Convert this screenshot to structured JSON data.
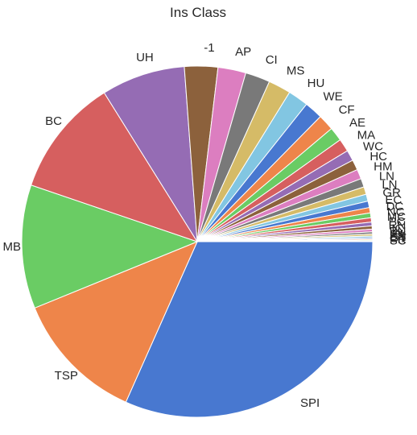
{
  "chart_data": {
    "type": "pie",
    "title": "Ins Class",
    "start_angle_deg": 0,
    "direction": "clockwise",
    "slices": [
      {
        "label": "SPI",
        "value": 32.0,
        "color": "#4878d0"
      },
      {
        "label": "TSP",
        "value": 12.3,
        "color": "#ee854a"
      },
      {
        "label": "MB",
        "value": 11.5,
        "color": "#6acc64"
      },
      {
        "label": "BC",
        "value": 11.0,
        "color": "#d65f5f"
      },
      {
        "label": "UH",
        "value": 7.8,
        "color": "#956cb4"
      },
      {
        "label": "-1",
        "value": 3.1,
        "color": "#8c613c"
      },
      {
        "label": "AP",
        "value": 2.6,
        "color": "#dc7ec0"
      },
      {
        "label": "CI",
        "value": 2.3,
        "color": "#797979"
      },
      {
        "label": "MS",
        "value": 2.1,
        "color": "#d5bb67"
      },
      {
        "label": "HU",
        "value": 1.9,
        "color": "#82c6e2"
      },
      {
        "label": "WE",
        "value": 1.7,
        "color": "#4878d0"
      },
      {
        "label": "CF",
        "value": 1.5,
        "color": "#ee854a"
      },
      {
        "label": "AE",
        "value": 1.3,
        "color": "#6acc64"
      },
      {
        "label": "MA",
        "value": 1.2,
        "color": "#d65f5f"
      },
      {
        "label": "WC",
        "value": 1.0,
        "color": "#956cb4"
      },
      {
        "label": "HC",
        "value": 0.95,
        "color": "#8c613c"
      },
      {
        "label": "HM",
        "value": 0.9,
        "color": "#dc7ec0"
      },
      {
        "label": "LN",
        "value": 0.8,
        "color": "#797979"
      },
      {
        "label": "LN",
        "value": 0.7,
        "color": "#d5bb67"
      },
      {
        "label": "GR",
        "value": 0.65,
        "color": "#82c6e2"
      },
      {
        "label": "EC",
        "value": 0.6,
        "color": "#4878d0"
      },
      {
        "label": "DC",
        "value": 0.5,
        "color": "#ee854a"
      },
      {
        "label": "NC",
        "value": 0.45,
        "color": "#6acc64"
      },
      {
        "label": "MC",
        "value": 0.4,
        "color": "#d65f5f"
      },
      {
        "label": "PC",
        "value": 0.35,
        "color": "#956cb4"
      },
      {
        "label": "RN",
        "value": 0.3,
        "color": "#8c613c"
      },
      {
        "label": "IC",
        "value": 0.25,
        "color": "#dc7ec0"
      },
      {
        "label": "BN",
        "value": 0.2,
        "color": "#797979"
      },
      {
        "label": "FI",
        "value": 0.17,
        "color": "#d5bb67"
      },
      {
        "label": "XX",
        "value": 0.14,
        "color": "#82c6e2"
      },
      {
        "label": "EN",
        "value": 0.12,
        "color": "#4878d0"
      },
      {
        "label": "OT",
        "value": 0.1,
        "color": "#ee854a"
      },
      {
        "label": "PR",
        "value": 0.09,
        "color": "#6acc64"
      },
      {
        "label": "SC",
        "value": 0.08,
        "color": "#d65f5f"
      }
    ]
  }
}
